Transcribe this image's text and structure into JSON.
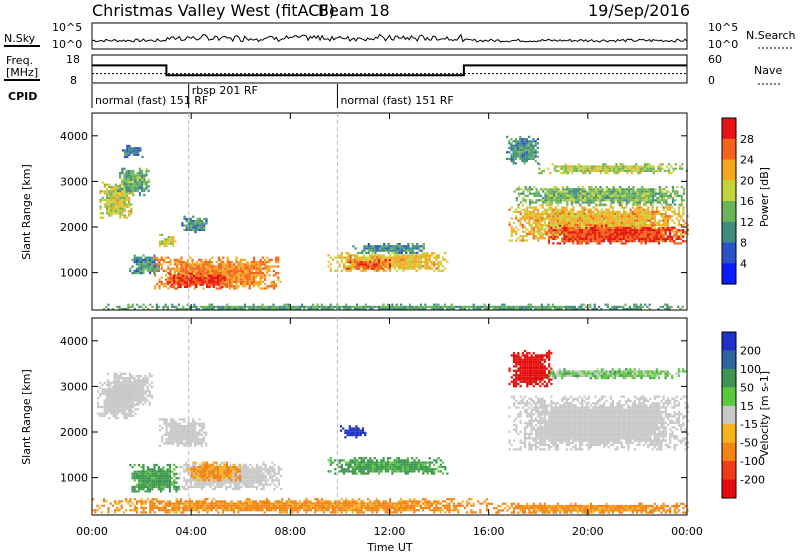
{
  "header": {
    "station": "Christmas Valley West (fitACF)",
    "beam": "Beam 18",
    "date": "19/Sep/2016"
  },
  "noise_panel": {
    "left_label": "N.Sky",
    "right_label": "N.Search",
    "left_ticks": [
      "10^5",
      "10^0"
    ],
    "right_ticks": [
      "10^5",
      "10^0"
    ]
  },
  "freq_panel": {
    "left_label_1": "Freq.",
    "left_label_2": "[MHz]",
    "right_label": "Nave",
    "left_ticks": [
      "18",
      "8"
    ],
    "right_ticks": [
      "60",
      "0"
    ],
    "freq_steps": [
      {
        "t0": 0,
        "t1": 3.0,
        "mhz": 14.3
      },
      {
        "t0": 3.0,
        "t1": 15.0,
        "mhz": 10.8
      },
      {
        "t0": 15.0,
        "t1": 24.0,
        "mhz": 14.3
      }
    ],
    "nave_level": 20
  },
  "cpid": {
    "label": "CPID",
    "segments": [
      {
        "t": 0.0,
        "text": "normal (fast) 151 RF",
        "row": 1
      },
      {
        "t": 3.9,
        "text": "rbsp 201 RF",
        "row": 0
      },
      {
        "t": 9.9,
        "text": "normal (fast) 151 RF",
        "row": 1
      }
    ]
  },
  "axes": {
    "ylabel": "Slant Range [km]",
    "xlabel": "Time UT",
    "x_ticks": [
      "00:00",
      "04:00",
      "08:00",
      "12:00",
      "16:00",
      "20:00",
      "00:00"
    ],
    "y_ticks": [
      "1000",
      "2000",
      "3000",
      "4000"
    ],
    "xlim": [
      0,
      24
    ],
    "ylim": [
      180,
      4500
    ]
  },
  "chart_data": [
    {
      "type": "heatmap",
      "panel": "power",
      "quantity_label": "Power [dB]",
      "colorbar_ticks": [
        "4",
        "8",
        "12",
        "16",
        "20",
        "24",
        "28"
      ],
      "colorbar_range": [
        0,
        32
      ],
      "colorbar_colors": [
        "#0a1cff",
        "#2a52c8",
        "#3e8c82",
        "#6ab45a",
        "#c8d23c",
        "#f5a81e",
        "#f5641e",
        "#e81414"
      ],
      "regions": [
        {
          "t0": 0.3,
          "t1": 1.6,
          "r0": 2200,
          "r1": 3000,
          "v": 18
        },
        {
          "t0": 1.0,
          "t1": 2.3,
          "r0": 2700,
          "r1": 3300,
          "v": 13
        },
        {
          "t0": 1.2,
          "t1": 2.0,
          "r0": 3550,
          "r1": 3800,
          "v": 9
        },
        {
          "t0": 1.5,
          "t1": 2.8,
          "r0": 1000,
          "r1": 1400,
          "v": 11
        },
        {
          "t0": 2.5,
          "t1": 7.6,
          "r0": 650,
          "r1": 1350,
          "v": 24
        },
        {
          "t0": 3.0,
          "t1": 5.5,
          "r0": 700,
          "r1": 1000,
          "v": 29
        },
        {
          "t0": 2.7,
          "t1": 3.4,
          "r0": 1600,
          "r1": 1850,
          "v": 18
        },
        {
          "t0": 3.6,
          "t1": 4.6,
          "r0": 1900,
          "r1": 2250,
          "v": 10
        },
        {
          "t0": 9.5,
          "t1": 14.3,
          "r0": 1050,
          "r1": 1450,
          "v": 21
        },
        {
          "t0": 10.2,
          "t1": 12.0,
          "r0": 1100,
          "r1": 1300,
          "v": 27
        },
        {
          "t0": 10.5,
          "t1": 13.5,
          "r0": 1450,
          "r1": 1650,
          "v": 10
        },
        {
          "t0": 16.8,
          "t1": 24.0,
          "r0": 1700,
          "r1": 2500,
          "v": 21
        },
        {
          "t0": 18.3,
          "t1": 24.0,
          "r0": 1650,
          "r1": 2050,
          "v": 28
        },
        {
          "t0": 17.0,
          "t1": 24.0,
          "r0": 2500,
          "r1": 2900,
          "v": 14
        },
        {
          "t0": 18.0,
          "t1": 24.0,
          "r0": 3200,
          "r1": 3400,
          "v": 17
        },
        {
          "t0": 16.7,
          "t1": 18.0,
          "r0": 3400,
          "r1": 4000,
          "v": 11
        },
        {
          "t0": 0.0,
          "t1": 24.0,
          "r0": 200,
          "r1": 320,
          "v": 12
        }
      ]
    },
    {
      "type": "heatmap",
      "panel": "velocity",
      "quantity_label": "Velocity [m s-1]",
      "colorbar_ticks": [
        "200",
        "100",
        "50",
        "15",
        "-15",
        "-50",
        "-100",
        "-200"
      ],
      "colorbar_range": [
        -250,
        250
      ],
      "colorbar_colors": [
        "#1e32c8",
        "#2e64a0",
        "#3c9650",
        "#5ac83c",
        "#c8c8c8",
        "#f5b41e",
        "#f58214",
        "#f03c14",
        "#e60a0a"
      ],
      "regions": [
        {
          "t0": 0.2,
          "t1": 1.8,
          "r0": 2300,
          "r1": 3100,
          "v": 0
        },
        {
          "t0": 0.6,
          "t1": 2.4,
          "r0": 2600,
          "r1": 3300,
          "v": 0
        },
        {
          "t0": 1.5,
          "t1": 3.5,
          "r0": 700,
          "r1": 1300,
          "v": 40
        },
        {
          "t0": 3.5,
          "t1": 7.6,
          "r0": 750,
          "r1": 1350,
          "v": 0
        },
        {
          "t0": 3.8,
          "t1": 6.0,
          "r0": 950,
          "r1": 1350,
          "v": -35
        },
        {
          "t0": 2.7,
          "t1": 4.6,
          "r0": 1700,
          "r1": 2300,
          "v": 0
        },
        {
          "t0": 9.5,
          "t1": 14.3,
          "r0": 1100,
          "r1": 1450,
          "v": 40
        },
        {
          "t0": 10.0,
          "t1": 11.0,
          "r0": 1900,
          "r1": 2150,
          "v": 200
        },
        {
          "t0": 16.8,
          "t1": 24.0,
          "r0": 1600,
          "r1": 2800,
          "v": 0
        },
        {
          "t0": 17.5,
          "t1": 24.0,
          "r0": 3200,
          "r1": 3400,
          "v": 20
        },
        {
          "t0": 16.8,
          "t1": 18.5,
          "r0": 3000,
          "r1": 3800,
          "v": -200
        },
        {
          "t0": 0.0,
          "t1": 16.0,
          "r0": 250,
          "r1": 550,
          "v": -40
        },
        {
          "t0": 16.0,
          "t1": 24.0,
          "r0": 250,
          "r1": 450,
          "v": -40
        }
      ]
    }
  ]
}
